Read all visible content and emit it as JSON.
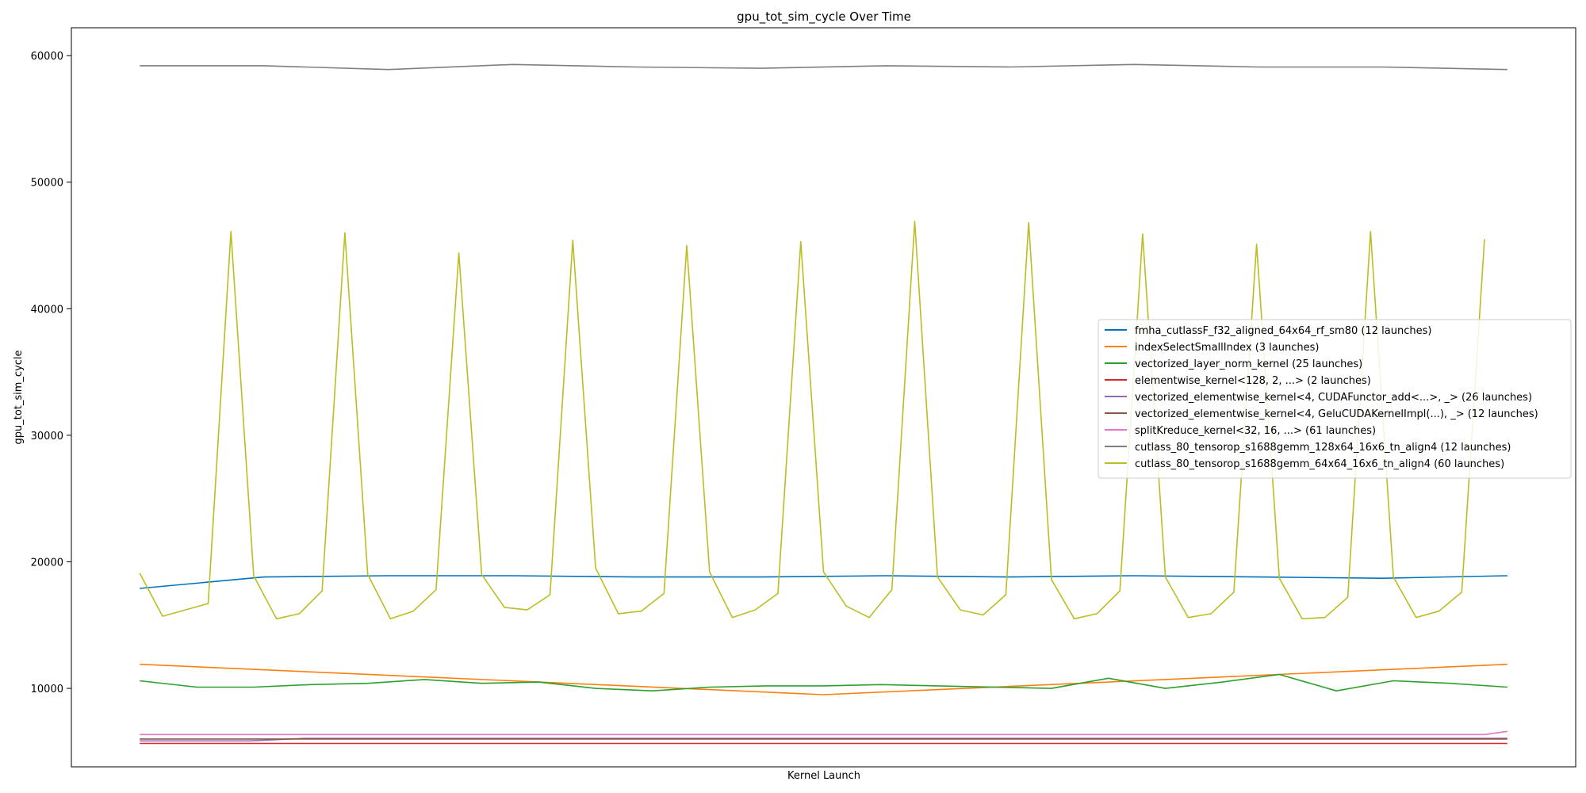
{
  "chart_data": {
    "type": "line",
    "title": "gpu_tot_sim_cycle Over Time",
    "xlabel": "Kernel Launch",
    "ylabel": "gpu_tot_sim_cycle",
    "ylim": [
      3800,
      62200
    ],
    "xlim": [
      -3,
      63
    ],
    "yticks": [
      10000,
      20000,
      30000,
      40000,
      50000,
      60000
    ],
    "ytick_labels": [
      "10000",
      "20000",
      "30000",
      "40000",
      "50000",
      "60000"
    ],
    "grid": false,
    "legend_position": "center-right",
    "series": [
      {
        "name": "fmha_cutlassF_f32_aligned_64x64_rf_sm80 (12 launches)",
        "color": "#0072bd",
        "x": [
          0,
          5.45,
          10.91,
          16.36,
          21.82,
          27.27,
          32.73,
          38.18,
          43.64,
          49.09,
          54.55,
          60
        ],
        "values": [
          17900,
          18800,
          18900,
          18900,
          18800,
          18800,
          18900,
          18800,
          18900,
          18800,
          18700,
          18900
        ]
      },
      {
        "name": "indexSelectSmallIndex (3 launches)",
        "color": "#ff7f0e",
        "x": [
          0,
          30,
          60
        ],
        "values": [
          11900,
          9500,
          11900
        ]
      },
      {
        "name": "vectorized_layer_norm_kernel (25 launches)",
        "color": "#2ca02c",
        "x": [
          0,
          2.5,
          5,
          7.5,
          10,
          12.5,
          15,
          17.5,
          20,
          22.5,
          25,
          27.5,
          30,
          32.5,
          35,
          37.5,
          40,
          42.5,
          45,
          47.5,
          50,
          52.5,
          55,
          57.5,
          60
        ],
        "values": [
          10600,
          10100,
          10100,
          10300,
          10400,
          10700,
          10400,
          10500,
          10000,
          9800,
          10100,
          10200,
          10200,
          10300,
          10200,
          10100,
          10000,
          10800,
          10000,
          10500,
          11100,
          9800,
          10600,
          10400,
          10100
        ]
      },
      {
        "name": "elementwise_kernel<128, 2, ...> (2 launches)",
        "color": "#d62728",
        "x": [
          0,
          60
        ],
        "values": [
          5650,
          5650
        ]
      },
      {
        "name": "vectorized_elementwise_kernel<4, CUDAFunctor_add<...>, _> (26 launches)",
        "color": "#9467bd",
        "x": [
          0,
          2.4,
          4.8,
          7.2,
          9.6,
          12,
          14.4,
          16.8,
          19.2,
          21.6,
          24,
          26.4,
          28.8,
          31.2,
          33.6,
          36,
          38.4,
          40.8,
          43.2,
          45.6,
          48,
          50.4,
          52.8,
          55.2,
          57.6,
          60
        ],
        "values": [
          5850,
          5850,
          5850,
          6050,
          6050,
          6050,
          6050,
          6050,
          6050,
          6050,
          6050,
          6050,
          6050,
          6050,
          6050,
          6050,
          6050,
          6050,
          6050,
          6050,
          6050,
          6050,
          6050,
          6050,
          6050,
          6050
        ]
      },
      {
        "name": "vectorized_elementwise_kernel<4, GeluCUDAKernelImpl(...), _> (12 launches)",
        "color": "#8c564b",
        "x": [
          0,
          5.45,
          10.91,
          16.36,
          21.82,
          27.27,
          32.73,
          38.18,
          43.64,
          49.09,
          54.55,
          60
        ],
        "values": [
          6000,
          6000,
          6000,
          6000,
          6000,
          6000,
          6000,
          6000,
          6000,
          6000,
          6000,
          6000
        ]
      },
      {
        "name": "splitKreduce_kernel<32, 16, ...> (61 launches)",
        "color": "#e377c2",
        "x": [
          0,
          5,
          10,
          15,
          20,
          25,
          30,
          35,
          40,
          45,
          50,
          55,
          59,
          60
        ],
        "values": [
          6350,
          6350,
          6350,
          6350,
          6350,
          6350,
          6350,
          6350,
          6350,
          6350,
          6350,
          6350,
          6350,
          6600
        ]
      },
      {
        "name": "cutlass_80_tensorop_s1688gemm_128x64_16x6_tn_align4 (12 launches)",
        "color": "#7f7f7f",
        "x": [
          0,
          5.45,
          10.91,
          16.36,
          21.82,
          27.27,
          32.73,
          38.18,
          43.64,
          49.09,
          54.55,
          60
        ],
        "values": [
          59200,
          59200,
          58900,
          59300,
          59100,
          59000,
          59200,
          59100,
          59300,
          59100,
          59100,
          58900
        ]
      },
      {
        "name": "cutlass_80_tensorop_s1688gemm_64x64_16x6_tn_align4 (60 launches)",
        "color": "#bcbd22",
        "x": [
          0,
          1,
          2,
          3,
          4,
          5,
          6,
          7,
          8,
          9,
          10,
          11,
          12,
          13,
          14,
          15,
          16,
          17,
          18,
          19,
          20,
          21,
          22,
          23,
          24,
          25,
          26,
          27,
          28,
          29,
          30,
          31,
          32,
          33,
          34,
          35,
          36,
          37,
          38,
          39,
          40,
          41,
          42,
          43,
          44,
          45,
          46,
          47,
          48,
          49,
          50,
          51,
          52,
          53,
          54,
          55,
          56,
          57,
          58,
          59
        ],
        "values": [
          19100,
          15700,
          16200,
          16700,
          46100,
          18900,
          15500,
          15900,
          17700,
          46000,
          19000,
          15500,
          16100,
          17800,
          44400,
          19000,
          16400,
          16200,
          17400,
          45400,
          19500,
          15900,
          16100,
          17500,
          45000,
          19200,
          15600,
          16200,
          17500,
          45300,
          19200,
          16500,
          15600,
          17800,
          46900,
          18800,
          16200,
          15800,
          17400,
          46800,
          18600,
          15500,
          15900,
          17700,
          45900,
          18800,
          15600,
          15900,
          17600,
          45100,
          18700,
          15500,
          15600,
          17200,
          46100,
          18800,
          15600,
          16100,
          17600,
          45500
        ]
      }
    ]
  }
}
